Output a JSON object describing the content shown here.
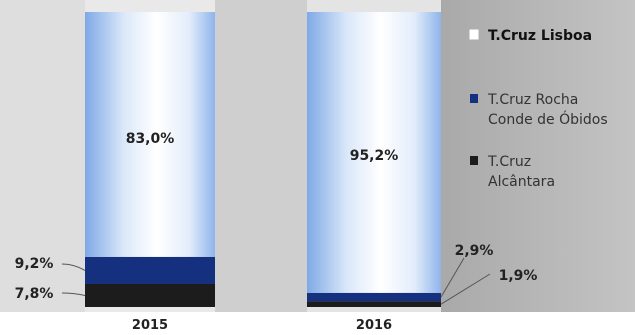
{
  "chart_data": {
    "type": "bar",
    "stacked": true,
    "categories": [
      "2015",
      "2016"
    ],
    "series": [
      {
        "name": "T.Cruz Alcântara",
        "values": [
          7.8,
          1.9
        ],
        "labels": [
          "7,8%",
          "1,9%"
        ],
        "color": "#1c1c1c"
      },
      {
        "name": "T.Cruz Rocha Conde de Óbidos",
        "values": [
          9.2,
          2.9
        ],
        "labels": [
          "9,2%",
          "2,9%"
        ],
        "color": "#15307e"
      },
      {
        "name": "T.Cruz Lisboa",
        "values": [
          83.0,
          95.2
        ],
        "labels": [
          "83,0%",
          "95,2%"
        ],
        "color": "#ffffff"
      }
    ],
    "ylim": [
      0,
      100
    ],
    "legend": {
      "position": "right",
      "items": [
        {
          "lines": [
            "T.Cruz Lisboa"
          ],
          "color": "#ffffff"
        },
        {
          "lines": [
            "T.Cruz Rocha",
            "Conde de Óbidos"
          ],
          "color": "#15307e"
        },
        {
          "lines": [
            "T.Cruz",
            "Alcântara"
          ],
          "color": "#1c1c1c"
        }
      ]
    },
    "grid": false
  }
}
